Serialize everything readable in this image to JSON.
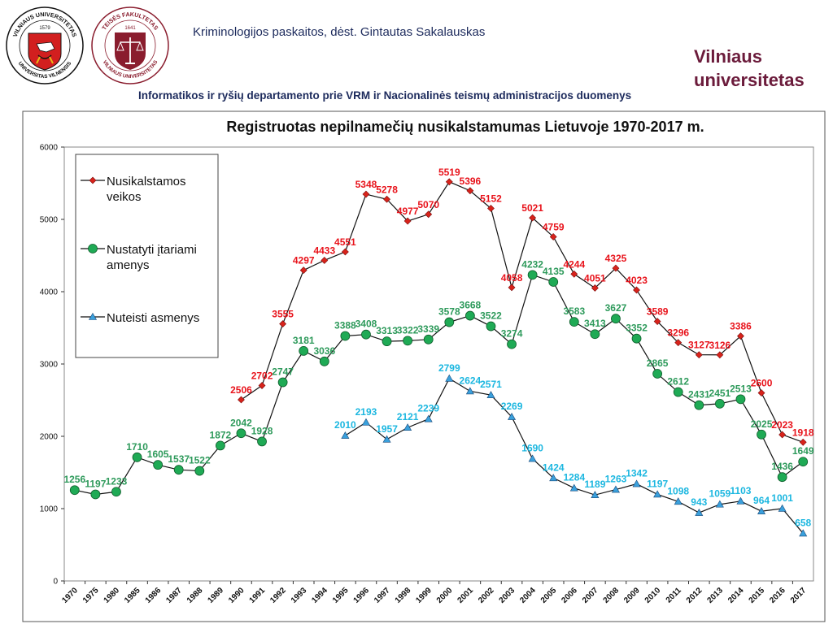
{
  "header": {
    "course_title": "Kriminologijos paskaitos, dėst. Gintautas Sakalauskas",
    "university_line1": "Vilniaus",
    "university_line2": "universitetas",
    "source_note": "Informatikos ir ryšių departamento prie VRM ir Nacionalinės teismų administracijos duomenys"
  },
  "logos": {
    "vu_text_top": "VILNIAUS UNIVERSITETAS",
    "vu_text_bottom": "UNIVERSITAS VILNENSIS",
    "vu_year": "1579",
    "law_text_top": "TEISĖS FAKULTETAS",
    "law_text_bottom": "VILNIAUS UNIVERSITETAS",
    "law_year": "1641"
  },
  "colors": {
    "crimes": "#e8131b",
    "suspects": "#2e9a5b",
    "convicted": "#1cb7e0",
    "marker_crimes": "#d8231b",
    "marker_suspects": "#1faa55",
    "marker_convicted": "#3aa0dc"
  },
  "chart_data": {
    "type": "line",
    "title": "Registruotas nepilnamečių nusikalstamumas Lietuvoje 1970-2017 m.",
    "categories": [
      "1970",
      "1975",
      "1980",
      "1985",
      "1986",
      "1987",
      "1988",
      "1989",
      "1990",
      "1991",
      "1992",
      "1993",
      "1994",
      "1995",
      "1996",
      "1997",
      "1998",
      "1999",
      "2000",
      "2001",
      "2002",
      "2003",
      "2004",
      "2005",
      "2006",
      "2007",
      "2008",
      "2009",
      "2010",
      "2011",
      "2012",
      "2013",
      "2014",
      "2015",
      "2016",
      "2017"
    ],
    "ylim": [
      0,
      6000
    ],
    "yticks": [
      0,
      1000,
      2000,
      3000,
      4000,
      5000,
      6000
    ],
    "legend_position": "top-left",
    "series": [
      {
        "name": "Nusikalstamos veikos",
        "legend_lines": [
          "Nusikalstamos",
          "veikos"
        ],
        "marker": "diamond",
        "values": [
          null,
          null,
          null,
          null,
          null,
          null,
          null,
          null,
          2506,
          2702,
          3555,
          4297,
          4433,
          4551,
          5348,
          5278,
          4977,
          5070,
          5519,
          5396,
          5152,
          4058,
          5021,
          4759,
          4244,
          4051,
          4325,
          4023,
          3589,
          3296,
          3127,
          3126,
          3386,
          2600,
          2023,
          1918
        ]
      },
      {
        "name": "Nustatyti įtariami amenys",
        "legend_lines": [
          "Nustatyti įtariami",
          "amenys"
        ],
        "marker": "circle",
        "values": [
          1256,
          1197,
          1233,
          1710,
          1605,
          1537,
          1522,
          1872,
          2042,
          1928,
          2747,
          3181,
          3036,
          3388,
          3408,
          3313,
          3322,
          3339,
          3578,
          3668,
          3522,
          3274,
          4232,
          4135,
          3583,
          3413,
          3627,
          3352,
          2865,
          2612,
          2431,
          2451,
          2513,
          2025,
          1436,
          1649
        ]
      },
      {
        "name": "Nuteisti asmenys",
        "legend_lines": [
          "Nuteisti asmenys"
        ],
        "marker": "triangle",
        "values": [
          null,
          null,
          null,
          null,
          null,
          null,
          null,
          null,
          null,
          null,
          null,
          null,
          null,
          2010,
          2193,
          1957,
          2121,
          2239,
          2799,
          2624,
          2571,
          2269,
          1690,
          1424,
          1284,
          1189,
          1263,
          1342,
          1197,
          1098,
          943,
          1059,
          1103,
          964,
          1001,
          658
        ]
      }
    ]
  }
}
